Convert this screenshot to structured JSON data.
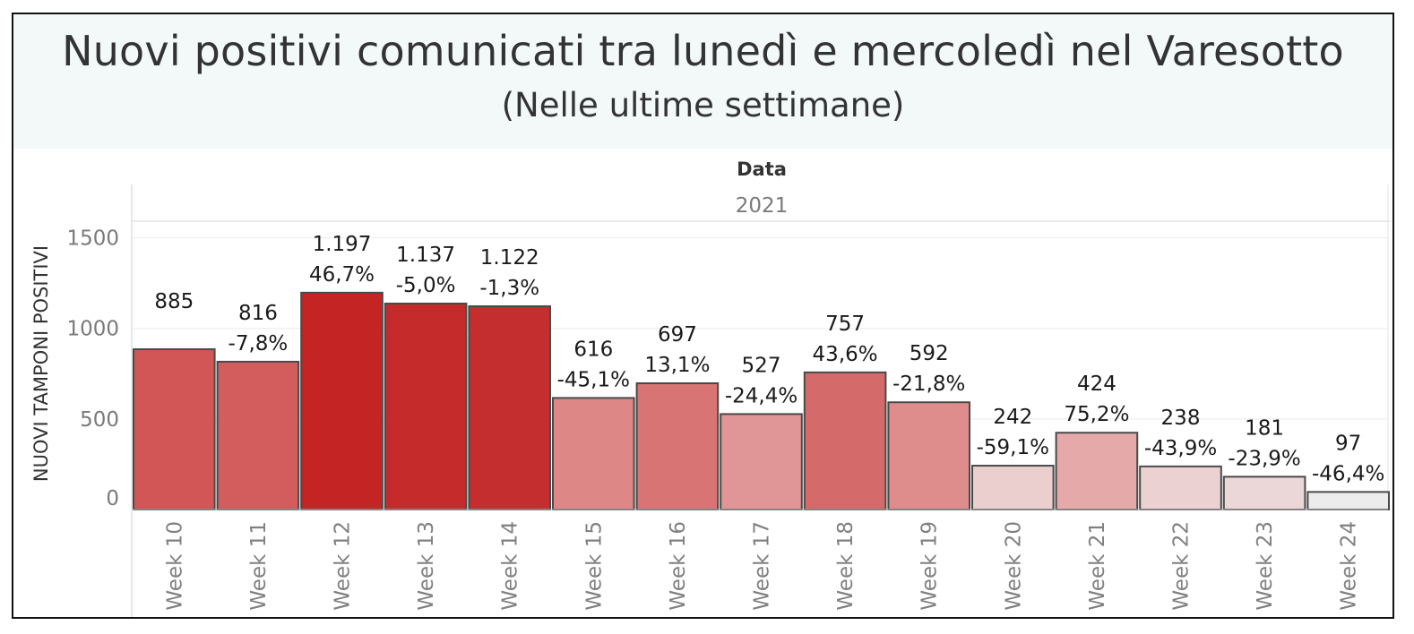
{
  "title": "Nuovi positivi comunicati tra lunedì e mercoledì nel Varesotto",
  "subtitle": "(Nelle ultime settimane)",
  "chart_data": {
    "type": "bar",
    "title": "Nuovi positivi comunicati tra lunedì e mercoledì nel Varesotto",
    "subtitle": "(Nelle ultime settimane)",
    "column_header": "Data",
    "year": "2021",
    "xlabel": "",
    "ylabel": "NUOVI TAMPONI POSITIVI",
    "ylim": [
      -10,
      1700
    ],
    "yticks": [
      0,
      500,
      1000,
      1500
    ],
    "ytick_labels": [
      "0",
      "500",
      "1000",
      "1500"
    ],
    "grid": true,
    "categories": [
      "Week 10",
      "Week 11",
      "Week 12",
      "Week 13",
      "Week 14",
      "Week 15",
      "Week 16",
      "Week 17",
      "Week 18",
      "Week 19",
      "Week 20",
      "Week 21",
      "Week 22",
      "Week 23",
      "Week 24"
    ],
    "values": [
      885,
      816,
      1197,
      1137,
      1122,
      616,
      697,
      527,
      757,
      592,
      242,
      424,
      238,
      181,
      97
    ],
    "value_labels": [
      "885",
      "816",
      "1.197",
      "1.137",
      "1.122",
      "616",
      "697",
      "527",
      "757",
      "592",
      "242",
      "424",
      "238",
      "181",
      "97"
    ],
    "change_labels": [
      "",
      "-7,8%",
      "46,7%",
      "-5,0%",
      "-1,3%",
      "-45,1%",
      "13,1%",
      "-24,4%",
      "43,6%",
      "-21,8%",
      "-59,1%",
      "75,2%",
      "-43,9%",
      "-23,9%",
      "-46,4%"
    ],
    "colors": [
      "#d25656",
      "#d35d5d",
      "#c42424",
      "#c52b2b",
      "#c52e2e",
      "#de8787",
      "#d97474",
      "#e09696",
      "#d56a6a",
      "#de8c8c",
      "#ebcfcf",
      "#e5a9a9",
      "#ebd1d1",
      "#ebd7d7",
      "#ececec"
    ],
    "bar_outline": "#4a4a4a"
  }
}
